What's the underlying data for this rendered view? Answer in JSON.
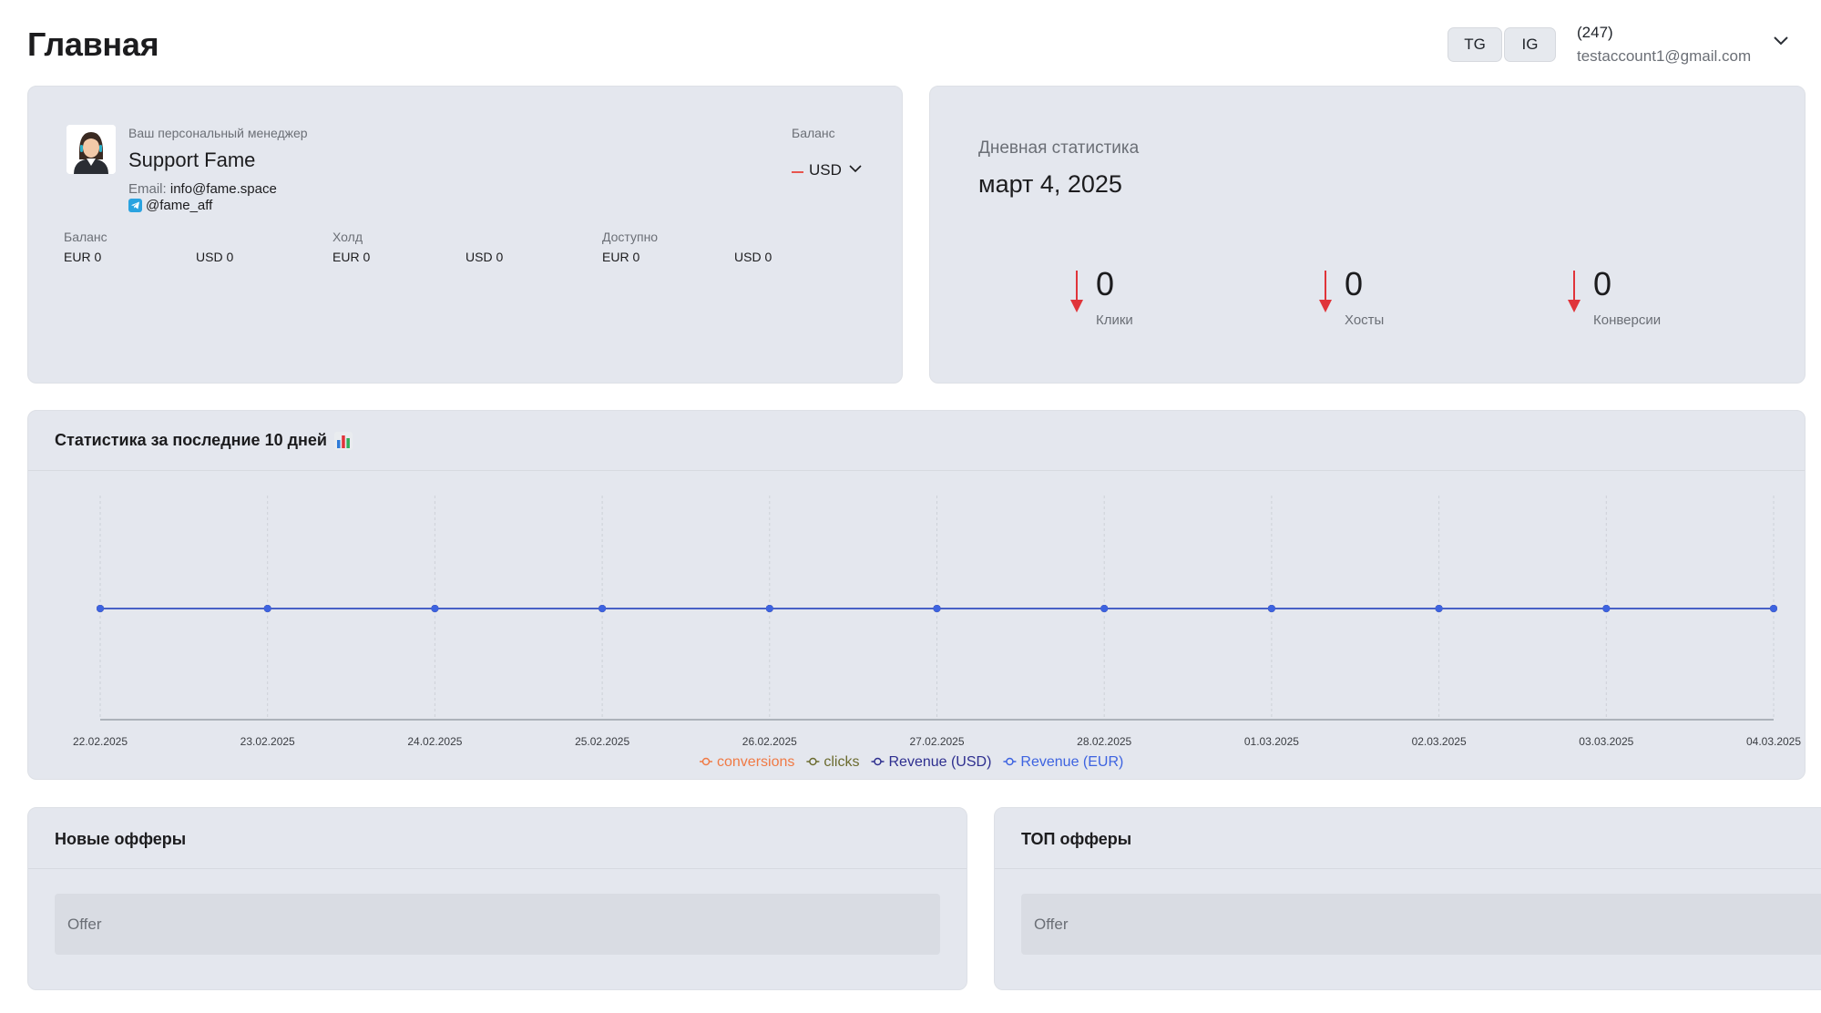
{
  "header": {
    "title": "Главная",
    "tg_label": "TG",
    "ig_label": "IG",
    "account_count": "(247)",
    "account_email": "testaccount1@gmail.com"
  },
  "manager": {
    "caption": "Ваш персональный менеджер",
    "name": "Support Fame",
    "email_label": "Email:",
    "email": "info@fame.space",
    "telegram": "@fame_aff",
    "balance_caption": "Баланс",
    "currency": "USD",
    "groups": [
      {
        "label": "Баланс",
        "eur": "EUR 0",
        "usd": "USD 0"
      },
      {
        "label": "Холд",
        "eur": "EUR 0",
        "usd": "USD 0"
      },
      {
        "label": "Доступно",
        "eur": "EUR 0",
        "usd": "USD 0"
      }
    ]
  },
  "daily": {
    "caption": "Дневная статистика",
    "date": "март 4, 2025",
    "stats": [
      {
        "value": "0",
        "label": "Клики"
      },
      {
        "value": "0",
        "label": "Хосты"
      },
      {
        "value": "0",
        "label": "Конверсии"
      }
    ]
  },
  "chart_section": {
    "title": "Статистика за последние 10 дней",
    "icon": "bar-chart-icon"
  },
  "chart_data": {
    "type": "line",
    "x": [
      "22.02.2025",
      "23.02.2025",
      "24.02.2025",
      "25.02.2025",
      "26.02.2025",
      "27.02.2025",
      "28.02.2025",
      "01.03.2025",
      "02.03.2025",
      "03.03.2025",
      "04.03.2025"
    ],
    "series": [
      {
        "name": "conversions",
        "color": "#f07a45",
        "values": [
          0,
          0,
          0,
          0,
          0,
          0,
          0,
          0,
          0,
          0,
          0
        ]
      },
      {
        "name": "clicks",
        "color": "#6b6b2f",
        "values": [
          0,
          0,
          0,
          0,
          0,
          0,
          0,
          0,
          0,
          0,
          0
        ]
      },
      {
        "name": "Revenue (USD)",
        "color": "#2e2f8f",
        "values": [
          0,
          0,
          0,
          0,
          0,
          0,
          0,
          0,
          0,
          0,
          0
        ]
      },
      {
        "name": "Revenue (EUR)",
        "color": "#3d63e0",
        "values": [
          0,
          0,
          0,
          0,
          0,
          0,
          0,
          0,
          0,
          0,
          0
        ]
      }
    ],
    "grid": true,
    "legend": "bottom-center"
  },
  "new_offers": {
    "title": "Новые офферы",
    "column": "Offer"
  },
  "top_offers": {
    "title": "ТОП офферы",
    "column": "Offer"
  },
  "colors": {
    "card_bg": "#e4e7ee",
    "accent_red": "#e0343a",
    "line_blue": "#3d63e0"
  }
}
